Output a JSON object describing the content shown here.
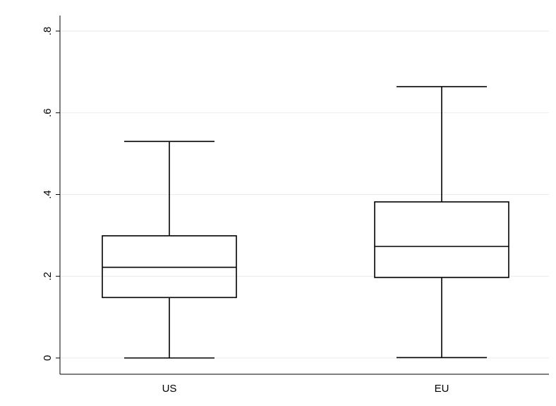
{
  "chart_data": {
    "type": "boxplot",
    "title": "",
    "xlabel": "",
    "ylabel": "",
    "ylim": [
      0,
      0.8
    ],
    "yticks": [
      0,
      0.2,
      0.4,
      0.6,
      0.8
    ],
    "ytick_labels": [
      "0",
      ".2",
      ".4",
      ".6",
      ".8"
    ],
    "grid": true,
    "categories": [
      "US",
      "EU"
    ],
    "boxes": [
      {
        "category": "US",
        "whisker_low": 0.0,
        "q1": 0.148,
        "median": 0.222,
        "q3": 0.299,
        "whisker_high": 0.53
      },
      {
        "category": "EU",
        "whisker_low": 0.001,
        "q1": 0.197,
        "median": 0.273,
        "q3": 0.382,
        "whisker_high": 0.664
      }
    ],
    "colors": {
      "box_stroke": "#000000",
      "grid": "#eaeaea",
      "background": "#ffffff"
    }
  }
}
